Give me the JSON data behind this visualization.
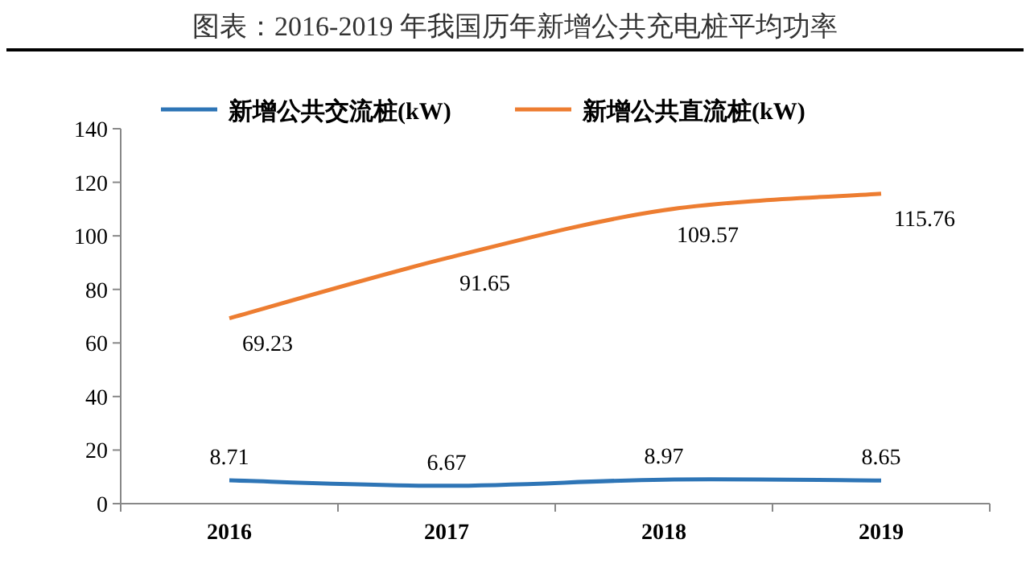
{
  "chart_data": {
    "type": "line",
    "title": "图表：2016-2019 年我国历年新增公共充电桩平均功率",
    "categories": [
      "2016",
      "2017",
      "2018",
      "2019"
    ],
    "series": [
      {
        "name": "新增公共交流桩(kW)",
        "color": "#2e75b6",
        "values": [
          8.71,
          6.67,
          8.97,
          8.65
        ]
      },
      {
        "name": "新增公共直流桩(kW)",
        "color": "#ed7d31",
        "values": [
          69.23,
          91.65,
          109.57,
          115.76
        ]
      }
    ],
    "ylim": [
      0,
      140
    ],
    "yticks": [
      0,
      20,
      40,
      60,
      80,
      100,
      120,
      140
    ],
    "grid": false,
    "legend": "top",
    "data_labels": true,
    "marker": "none",
    "line_style": "solid"
  }
}
